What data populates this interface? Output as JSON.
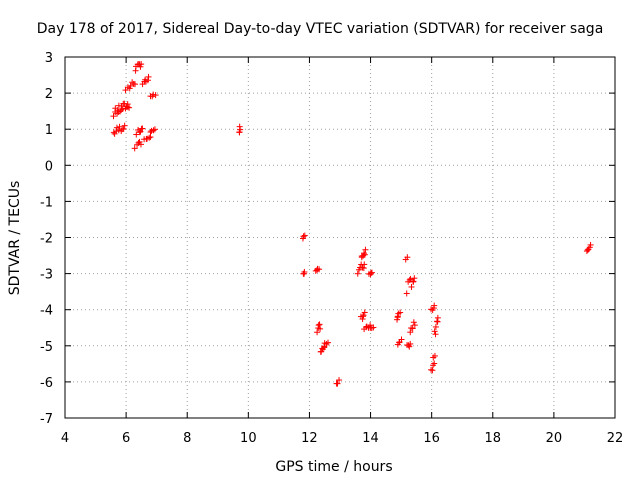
{
  "chart_data": {
    "type": "scatter",
    "title": "Day 178 of 2017, Sidereal Day-to-day VTEC variation (SDTVAR) for receiver saga",
    "xlabel": "GPS time / hours",
    "ylabel": "SDTVAR / TECUs",
    "xlim": [
      4,
      22
    ],
    "ylim": [
      -7,
      3
    ],
    "xticks": [
      4,
      6,
      8,
      10,
      12,
      14,
      16,
      18,
      20,
      22
    ],
    "yticks": [
      -7,
      -6,
      -5,
      -4,
      -3,
      -2,
      -1,
      0,
      1,
      2,
      3
    ],
    "grid": true,
    "marker": "+",
    "color": "#ff0000",
    "series": [
      {
        "name": "SDTVAR",
        "segments": [
          {
            "x": [
              5.6,
              5.95
            ],
            "y": [
              0.8,
              1.2
            ],
            "n": 10
          },
          {
            "x": [
              5.6,
              6.1
            ],
            "y": [
              1.35,
              1.8
            ],
            "n": 18
          },
          {
            "x": [
              6.0,
              6.3
            ],
            "y": [
              2.0,
              2.4
            ],
            "n": 7
          },
          {
            "x": [
              6.3,
              6.5
            ],
            "y": [
              2.6,
              2.9
            ],
            "n": 7
          },
          {
            "x": [
              6.55,
              6.75
            ],
            "y": [
              2.2,
              2.45
            ],
            "n": 6
          },
          {
            "x": [
              6.8,
              6.95
            ],
            "y": [
              1.85,
              2.0
            ],
            "n": 4
          },
          {
            "x": [
              6.3,
              6.5
            ],
            "y": [
              0.45,
              0.7
            ],
            "n": 5
          },
          {
            "x": [
              6.35,
              6.55
            ],
            "y": [
              0.85,
              1.1
            ],
            "n": 6
          },
          {
            "x": [
              6.6,
              6.8
            ],
            "y": [
              0.7,
              0.85
            ],
            "n": 5
          },
          {
            "x": [
              6.8,
              6.95
            ],
            "y": [
              0.9,
              1.0
            ],
            "n": 4
          },
          {
            "x": [
              9.7,
              9.75
            ],
            "y": [
              0.8,
              1.15
            ],
            "n": 4
          },
          {
            "x": [
              11.8,
              11.85
            ],
            "y": [
              -2.05,
              -1.9
            ],
            "n": 3
          },
          {
            "x": [
              11.8,
              11.85
            ],
            "y": [
              -3.05,
              -2.95
            ],
            "n": 3
          },
          {
            "x": [
              12.2,
              12.3
            ],
            "y": [
              -2.95,
              -2.85
            ],
            "n": 4
          },
          {
            "x": [
              12.25,
              12.35
            ],
            "y": [
              -4.8,
              -4.3
            ],
            "n": 5
          },
          {
            "x": [
              12.35,
              12.5
            ],
            "y": [
              -5.25,
              -4.95
            ],
            "n": 6
          },
          {
            "x": [
              12.5,
              12.6
            ],
            "y": [
              -5.0,
              -4.85
            ],
            "n": 3
          },
          {
            "x": [
              12.9,
              12.95
            ],
            "y": [
              -6.1,
              -5.9
            ],
            "n": 3
          },
          {
            "x": [
              13.6,
              13.8
            ],
            "y": [
              -3.1,
              -2.6
            ],
            "n": 7
          },
          {
            "x": [
              13.7,
              13.85
            ],
            "y": [
              -2.6,
              -2.3
            ],
            "n": 6
          },
          {
            "x": [
              13.95,
              14.05
            ],
            "y": [
              -3.05,
              -2.9
            ],
            "n": 4
          },
          {
            "x": [
              13.7,
              13.8
            ],
            "y": [
              -4.3,
              -4.0
            ],
            "n": 5
          },
          {
            "x": [
              13.8,
              14.0
            ],
            "y": [
              -4.6,
              -4.4
            ],
            "n": 6
          },
          {
            "x": [
              14.0,
              14.1
            ],
            "y": [
              -4.55,
              -4.45
            ],
            "n": 3
          },
          {
            "x": [
              14.85,
              14.95
            ],
            "y": [
              -4.4,
              -4.0
            ],
            "n": 5
          },
          {
            "x": [
              14.9,
              15.0
            ],
            "y": [
              -5.0,
              -4.8
            ],
            "n": 4
          },
          {
            "x": [
              15.15,
              15.2
            ],
            "y": [
              -2.65,
              -2.5
            ],
            "n": 2
          },
          {
            "x": [
              15.2,
              15.45
            ],
            "y": [
              -3.6,
              -2.9
            ],
            "n": 8
          },
          {
            "x": [
              15.2,
              15.3
            ],
            "y": [
              -5.15,
              -4.8
            ],
            "n": 4
          },
          {
            "x": [
              15.3,
              15.45
            ],
            "y": [
              -4.7,
              -4.2
            ],
            "n": 5
          },
          {
            "x": [
              16.0,
              16.1
            ],
            "y": [
              -4.05,
              -3.8
            ],
            "n": 4
          },
          {
            "x": [
              16.1,
              16.2
            ],
            "y": [
              -4.8,
              -4.2
            ],
            "n": 6
          },
          {
            "x": [
              16.0,
              16.1
            ],
            "y": [
              -5.75,
              -5.2
            ],
            "n": 6
          },
          {
            "x": [
              21.1,
              21.2
            ],
            "y": [
              -2.4,
              -2.2
            ],
            "n": 5
          }
        ]
      }
    ]
  }
}
